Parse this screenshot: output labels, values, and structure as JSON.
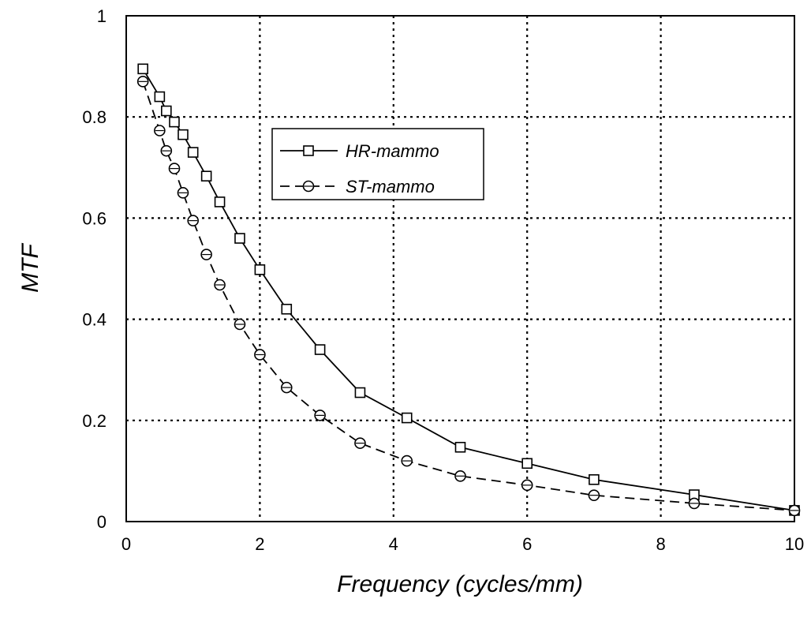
{
  "chart_data": {
    "type": "line",
    "title": "",
    "xlabel": "Frequency (cycles/mm)",
    "ylabel": "MTF",
    "xlim": [
      0,
      10
    ],
    "ylim": [
      0,
      1
    ],
    "x_ticks": [
      "0",
      "2",
      "4",
      "6",
      "8",
      "10"
    ],
    "y_ticks": [
      "0",
      "0.2",
      "0.4",
      "0.6",
      "0.8",
      "1"
    ],
    "grid": true,
    "legend_position": "upper-center",
    "series": [
      {
        "name": "HR-mammo",
        "marker": "square",
        "line_style": "solid",
        "points": [
          [
            0.25,
            0.895
          ],
          [
            0.5,
            0.84
          ],
          [
            0.6,
            0.812
          ],
          [
            0.72,
            0.79
          ],
          [
            0.85,
            0.765
          ],
          [
            1.0,
            0.73
          ],
          [
            1.2,
            0.683
          ],
          [
            1.4,
            0.632
          ],
          [
            1.7,
            0.56
          ],
          [
            2.0,
            0.498
          ],
          [
            2.4,
            0.42
          ],
          [
            2.9,
            0.34
          ],
          [
            3.5,
            0.255
          ],
          [
            4.2,
            0.205
          ],
          [
            5.0,
            0.147
          ],
          [
            6.0,
            0.115
          ],
          [
            7.0,
            0.083
          ],
          [
            8.5,
            0.053
          ],
          [
            10.0,
            0.022
          ]
        ]
      },
      {
        "name": "ST-mammo",
        "marker": "circle",
        "line_style": "dashed",
        "points": [
          [
            0.25,
            0.87
          ],
          [
            0.5,
            0.773
          ],
          [
            0.6,
            0.733
          ],
          [
            0.72,
            0.698
          ],
          [
            0.85,
            0.65
          ],
          [
            1.0,
            0.595
          ],
          [
            1.2,
            0.528
          ],
          [
            1.4,
            0.468
          ],
          [
            1.7,
            0.39
          ],
          [
            2.0,
            0.33
          ],
          [
            2.4,
            0.265
          ],
          [
            2.9,
            0.21
          ],
          [
            3.5,
            0.155
          ],
          [
            4.2,
            0.12
          ],
          [
            5.0,
            0.09
          ],
          [
            6.0,
            0.072
          ],
          [
            7.0,
            0.052
          ],
          [
            8.5,
            0.036
          ],
          [
            10.0,
            0.022
          ]
        ]
      }
    ]
  }
}
